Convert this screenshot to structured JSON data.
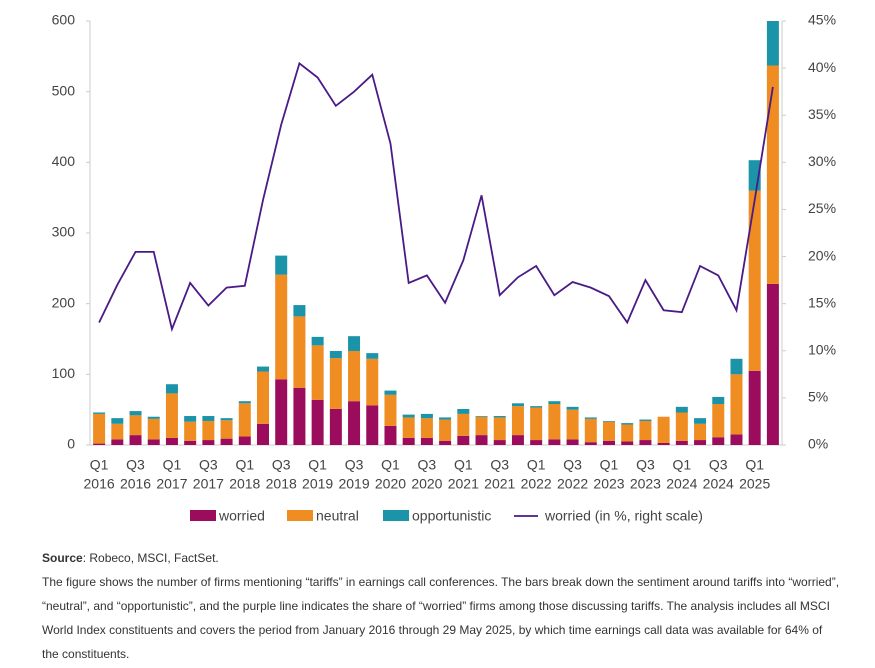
{
  "chart_data": {
    "type": "bar",
    "categories": [
      [
        "Q1",
        "2016"
      ],
      null,
      [
        "Q3",
        "2016"
      ],
      null,
      [
        "Q1",
        "2017"
      ],
      null,
      [
        "Q3",
        "2017"
      ],
      null,
      [
        "Q1",
        "2018"
      ],
      null,
      [
        "Q3",
        "2018"
      ],
      null,
      [
        "Q1",
        "2019"
      ],
      null,
      [
        "Q3",
        "2019"
      ],
      null,
      [
        "Q1",
        "2020"
      ],
      null,
      [
        "Q3",
        "2020"
      ],
      null,
      [
        "Q1",
        "2021"
      ],
      null,
      [
        "Q3",
        "2021"
      ],
      null,
      [
        "Q1",
        "2022"
      ],
      null,
      [
        "Q3",
        "2022"
      ],
      null,
      [
        "Q1",
        "2023"
      ],
      null,
      [
        "Q3",
        "2023"
      ],
      null,
      [
        "Q1",
        "2024"
      ],
      null,
      [
        "Q3",
        "2024"
      ],
      null,
      [
        "Q1",
        "2025"
      ],
      null
    ],
    "series": [
      {
        "name": "worried",
        "color": "#9b0d5c",
        "values": [
          2,
          8,
          14,
          8,
          10,
          6,
          7,
          9,
          12,
          30,
          93,
          81,
          64,
          51,
          62,
          56,
          27,
          10,
          10,
          6,
          13,
          14,
          7,
          14,
          7,
          8,
          8,
          4,
          6,
          5,
          7,
          3,
          6,
          7,
          11,
          15,
          105,
          228
        ]
      },
      {
        "name": "neutral",
        "color": "#ef8c22",
        "values": [
          42,
          22,
          28,
          29,
          63,
          27,
          27,
          26,
          47,
          74,
          148,
          101,
          77,
          72,
          71,
          66,
          44,
          29,
          28,
          30,
          31,
          26,
          32,
          41,
          46,
          50,
          42,
          33,
          27,
          24,
          27,
          37,
          40,
          23,
          47,
          85,
          255,
          309
        ]
      },
      {
        "name": "opportunistic",
        "color": "#1b93a8",
        "values": [
          2,
          8,
          6,
          3,
          13,
          8,
          7,
          3,
          3,
          7,
          27,
          16,
          12,
          10,
          21,
          8,
          6,
          4,
          6,
          3,
          7,
          1,
          2,
          4,
          2,
          4,
          4,
          2,
          1,
          2,
          2,
          0,
          8,
          8,
          10,
          22,
          43,
          63
        ]
      },
      {
        "name": "worried (in %, right scale)",
        "color": "#4a1a86",
        "type": "line",
        "axis": "y2",
        "values": [
          13,
          17,
          20.5,
          20.5,
          12.3,
          17.2,
          14.8,
          16.7,
          16.9,
          26,
          34,
          40.5,
          39,
          36,
          37.5,
          39.3,
          32,
          17.2,
          18,
          15.1,
          19.6,
          26.5,
          15.9,
          17.8,
          19,
          15.9,
          17.3,
          16.7,
          15.8,
          13,
          17.5,
          14.3,
          14.1,
          19,
          18,
          14.3,
          26,
          38
        ]
      }
    ],
    "ylim": [
      0,
      600
    ],
    "yticks": [
      0,
      100,
      200,
      300,
      400,
      500,
      600
    ],
    "y2lim": [
      0,
      45
    ],
    "y2ticks": [
      {
        "value": 0,
        "label": "0%"
      },
      {
        "value": 5,
        "label": "5%"
      },
      {
        "value": 10,
        "label": "10%"
      },
      {
        "value": 15,
        "label": "15%"
      },
      {
        "value": 20,
        "label": "20%"
      },
      {
        "value": 25,
        "label": "25%"
      },
      {
        "value": 30,
        "label": "30%"
      },
      {
        "value": 35,
        "label": "35%"
      },
      {
        "value": 40,
        "label": "40%"
      },
      {
        "value": 45,
        "label": "45%"
      }
    ],
    "grid": false,
    "stacked": true,
    "legend": "bottom"
  },
  "notes": {
    "source_label": "Source",
    "source_text": ": Robeco, MSCI, FactSet.",
    "description": "The figure shows the number of firms mentioning “tariffs” in earnings call conferences. The bars break down the sentiment around tariffs into “worried”, “neutral”, and “opportunistic”, and the purple line indicates the share of “worried” firms among those discussing tariffs. The analysis includes all MSCI World Index constituents and covers the period from January 2016 through 29 May 2025, by which time earnings call data was available for 64% of the constituents."
  }
}
